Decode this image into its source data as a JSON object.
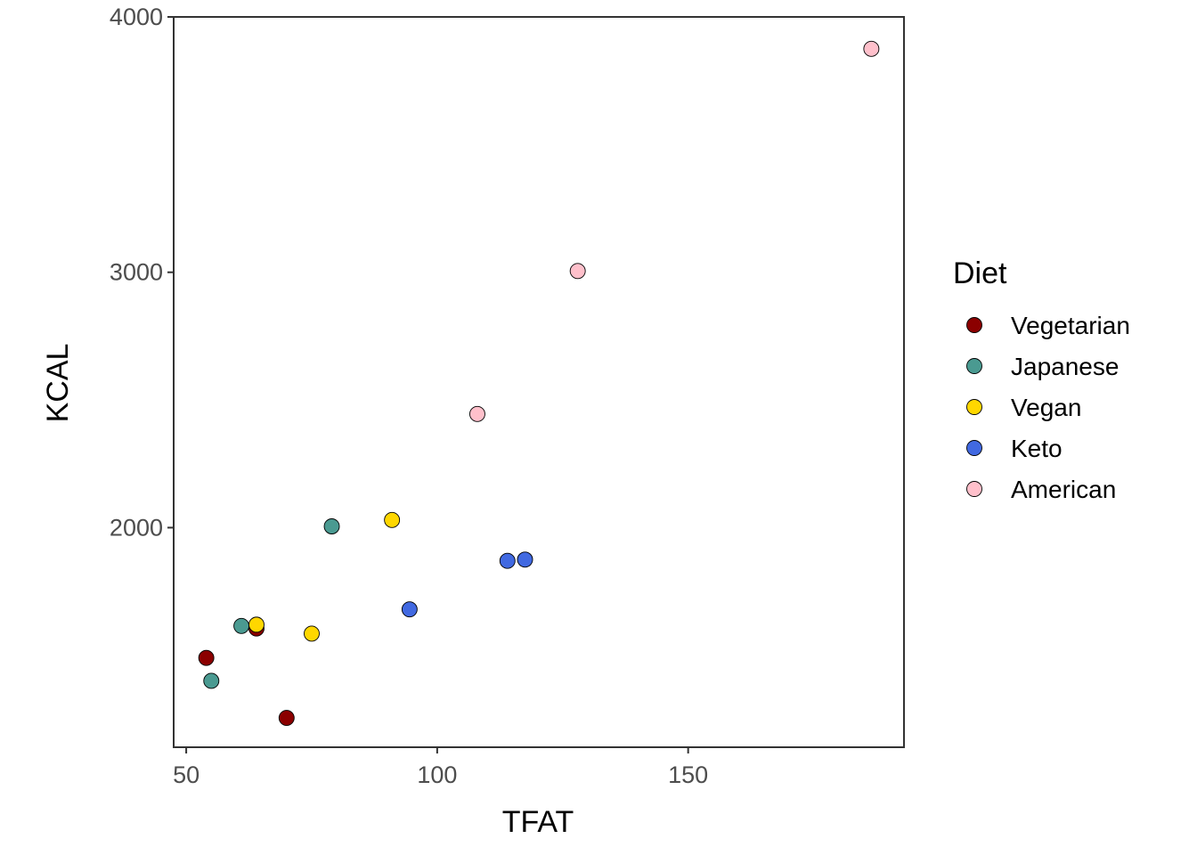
{
  "chart_data": {
    "type": "scatter",
    "title": "",
    "xlabel": "TFAT",
    "ylabel": "KCAL",
    "xlim": [
      47.5,
      193
    ],
    "ylim": [
      1140,
      4000
    ],
    "xticks": [
      50,
      100,
      150
    ],
    "yticks": [
      2000,
      3000,
      4000
    ],
    "grid": false,
    "legend": {
      "title": "Diet",
      "placement": "right"
    },
    "series": [
      {
        "name": "Vegetarian",
        "color": "#8B0000",
        "x": [
          54,
          64,
          70
        ],
        "y": [
          1490,
          1605,
          1255
        ]
      },
      {
        "name": "Japanese",
        "color": "#4A9A91",
        "x": [
          55,
          61,
          79
        ],
        "y": [
          1400,
          1615,
          2005
        ]
      },
      {
        "name": "Vegan",
        "color": "#FFD700",
        "x": [
          64,
          75,
          91
        ],
        "y": [
          1620,
          1585,
          2030
        ]
      },
      {
        "name": "Keto",
        "color": "#4169E1",
        "x": [
          94.5,
          114,
          117.5
        ],
        "y": [
          1680,
          1870,
          1875
        ]
      },
      {
        "name": "American",
        "color": "#FFC0CB",
        "x": [
          108,
          128,
          186.5
        ],
        "y": [
          2445,
          3005,
          3875
        ]
      }
    ]
  }
}
